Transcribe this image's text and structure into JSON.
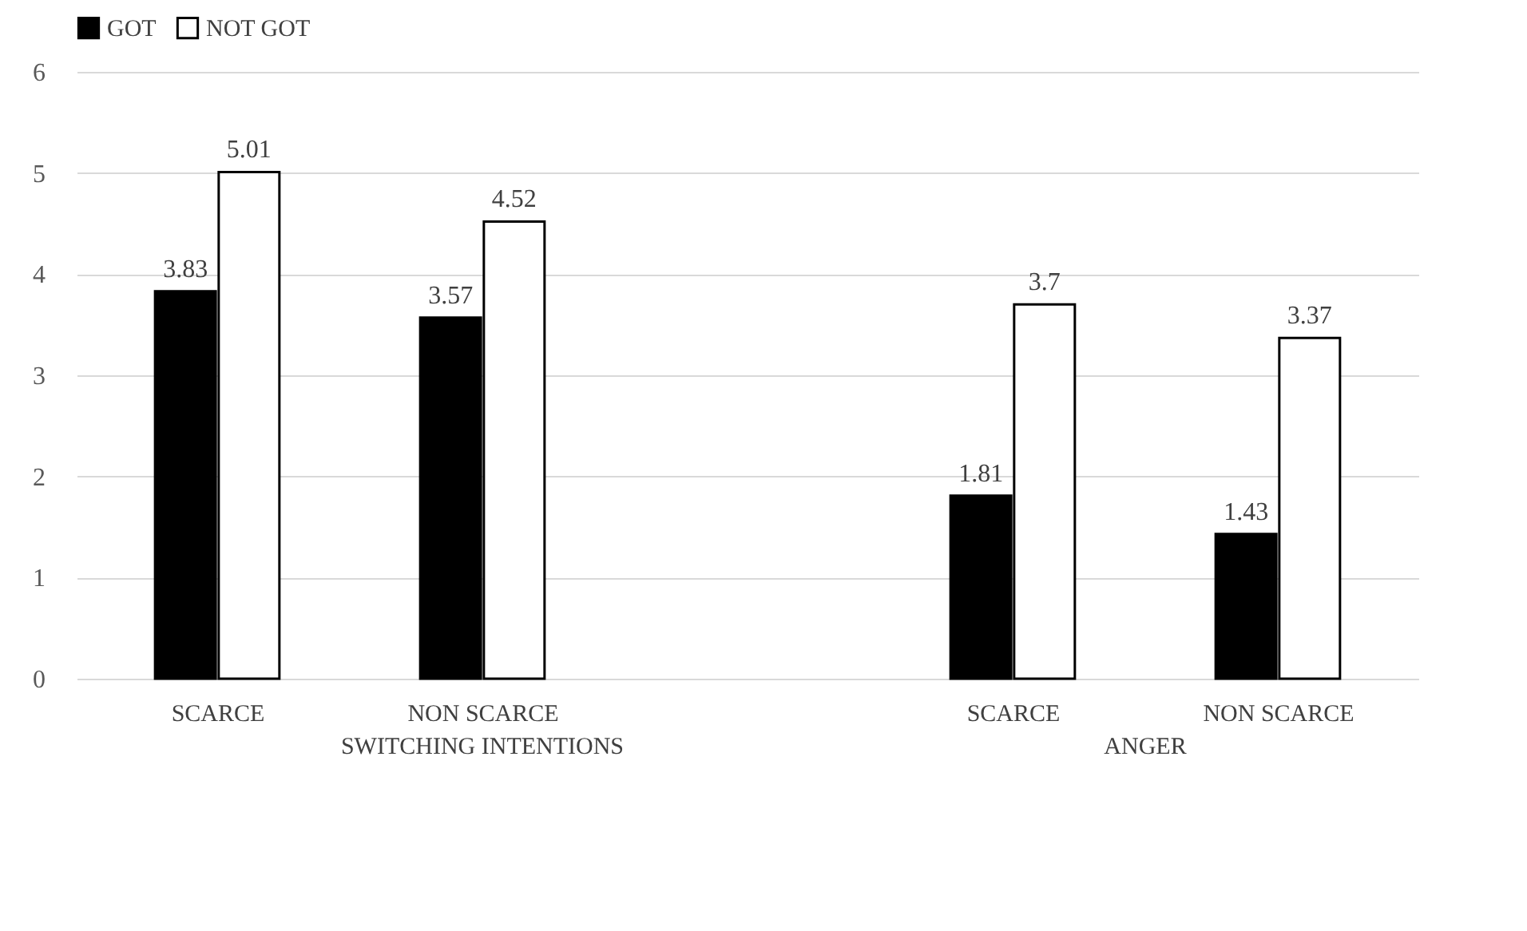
{
  "chart_data": {
    "type": "bar",
    "categories": [
      "SCARCE",
      "NON SCARCE",
      null,
      "SCARCE",
      "NON SCARCE"
    ],
    "series": [
      {
        "name": "GOT",
        "color": "#000000",
        "values": [
          3.83,
          3.57,
          null,
          1.81,
          1.43
        ]
      },
      {
        "name": "NOT GOT",
        "color": "#ffffff",
        "values": [
          5.01,
          4.52,
          null,
          3.7,
          3.37
        ]
      }
    ],
    "annotations": [
      "SWITCHING INTENTIONS",
      "ANGER"
    ],
    "ylim": [
      0,
      6
    ],
    "yticks": [
      0,
      1,
      2,
      3,
      4,
      5,
      6
    ],
    "grid": "y",
    "legend": "top",
    "data_labels": true
  }
}
